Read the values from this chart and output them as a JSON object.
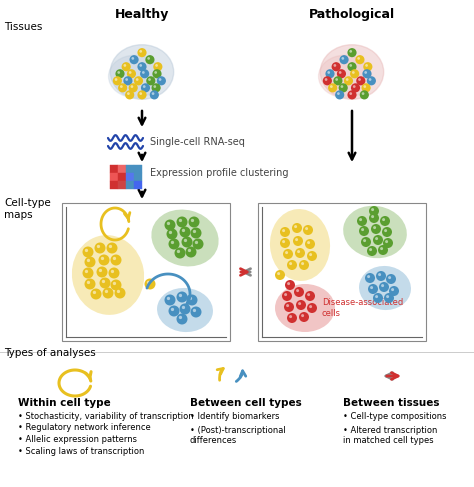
{
  "bg_color": "#ffffff",
  "healthy_label": "Healthy",
  "pathological_label": "Pathological",
  "tissues_label": "Tissues",
  "cell_type_maps_label": "Cell-type\nmaps",
  "types_of_analyses_label": "Types of analyses",
  "rna_seq_label": "Single-cell RNA-seq",
  "clustering_label": "Expression profile clustering",
  "disease_label": "Disease-associated\ncells",
  "within_title": "Within cell type",
  "within_bullets": [
    "Stochasticity, variability of transcription",
    "Regulatory network inference",
    "Allelic expression patterns",
    "Scaling laws of transcription"
  ],
  "between_ct_title": "Between cell types",
  "between_ct_bullets": [
    "Identify biomarkers",
    "(Post)-transcriptional\ndifferences"
  ],
  "between_t_title": "Between tissues",
  "between_t_bullets": [
    "Cell-type compositions",
    "Altered transcription\nin matched cell types"
  ],
  "yellow": "#E8C020",
  "green": "#5A9E30",
  "blue": "#4890C0",
  "red": "#D03030",
  "gray": "#888888",
  "dark_blue": "#2244AA"
}
